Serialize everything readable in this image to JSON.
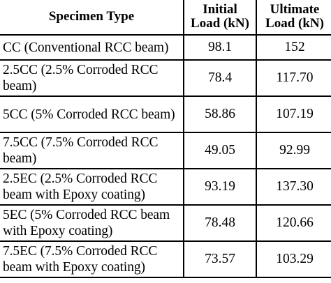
{
  "table": {
    "headers": {
      "specimen_type": "Specimen Type",
      "initial_load": [
        "Initial",
        "Load (kN)"
      ],
      "ultimate_load": [
        "Ultimate",
        "Load (kN)"
      ]
    },
    "rows": [
      {
        "type": "CC (Conventional RCC beam)",
        "initial": "98.1",
        "ultimate": "152"
      },
      {
        "type": "2.5CC (2.5% Corroded RCC beam)",
        "initial": "78.4",
        "ultimate": "117.70"
      },
      {
        "type": "5CC (5% Corroded RCC beam)",
        "initial": "58.86",
        "ultimate": "107.19"
      },
      {
        "type": "7.5CC (7.5% Corroded RCC beam)",
        "initial": "49.05",
        "ultimate": "92.99"
      },
      {
        "type": "2.5EC (2.5% Corroded RCC beam with Epoxy coating)",
        "initial": "93.19",
        "ultimate": "137.30"
      },
      {
        "type": "5EC (5% Corroded RCC beam with Epoxy coating)",
        "initial": "78.48",
        "ultimate": "120.66"
      },
      {
        "type": "7.5EC (7.5% Corroded RCC beam with Epoxy coating)",
        "initial": "73.57",
        "ultimate": "103.29"
      }
    ]
  }
}
